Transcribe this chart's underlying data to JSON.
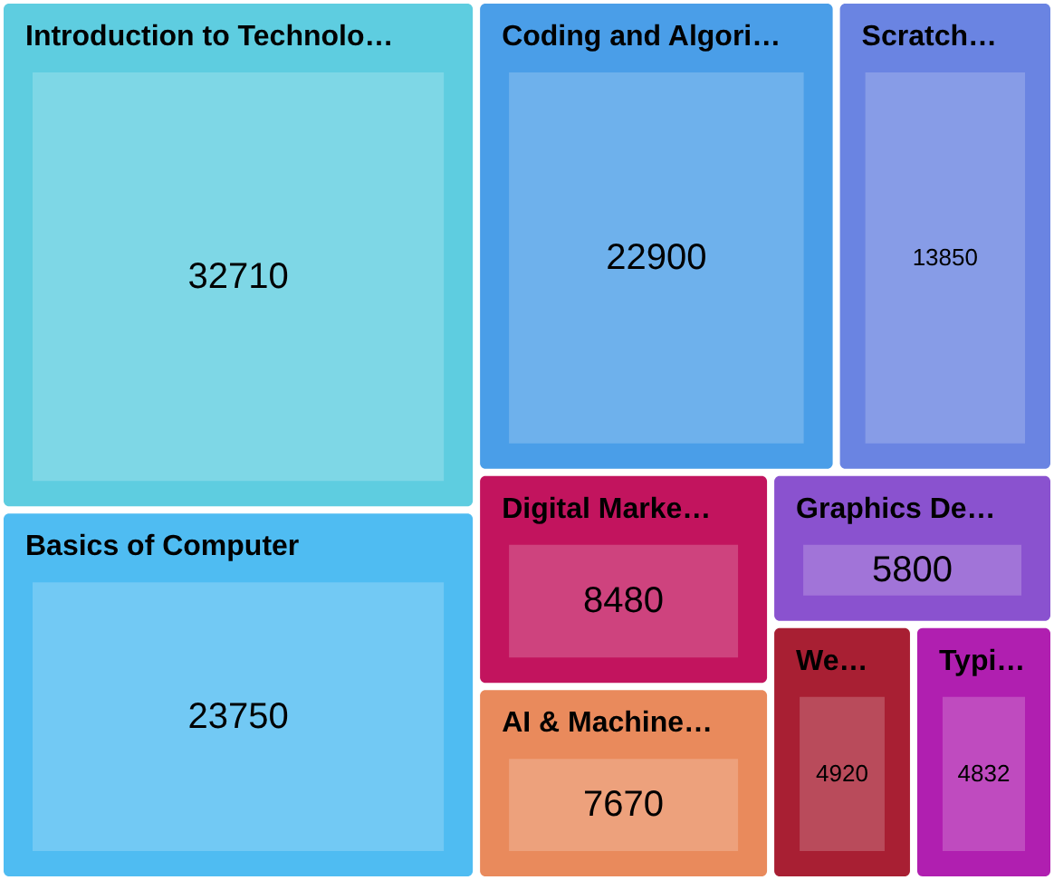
{
  "chart_data": {
    "type": "other",
    "categories": [
      "Introduction to Technolo…",
      "Basics of Computer",
      "Coding and Algori…",
      "Scratch…",
      "Digital Marke…",
      "AI & Machine…",
      "Graphics De…",
      "We…",
      "Typi…"
    ],
    "values": [
      32710,
      23750,
      22900,
      13850,
      8480,
      7670,
      5800,
      4920,
      4832
    ],
    "colors": [
      "#5ecde0",
      "#4fbcf2",
      "#4a9ee8",
      "#6a84e2",
      "#c2145e",
      "#e98a5c",
      "#8a52cf",
      "#a81f33",
      "#b01fb0"
    ],
    "data_labels": true
  }
}
